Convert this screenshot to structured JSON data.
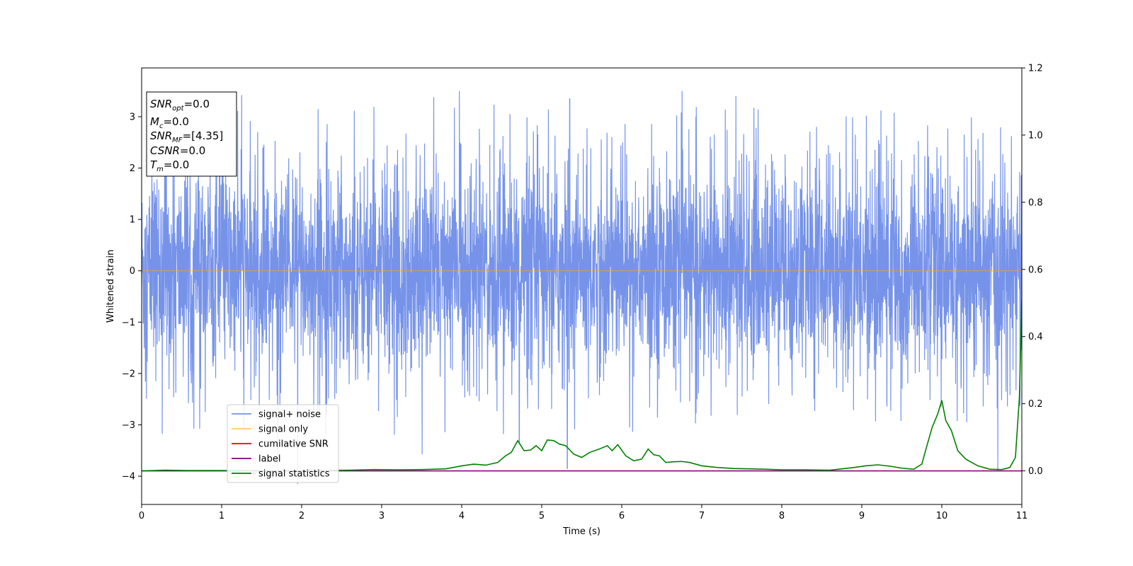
{
  "chart_data": {
    "type": "line",
    "xlabel": "Time (s)",
    "ylabel": "Whitened strain",
    "xlim": [
      0,
      11
    ],
    "ylim_left": [
      -4.55,
      3.95
    ],
    "ylim_right": [
      -0.1,
      1.2
    ],
    "x_ticks": [
      0,
      1,
      2,
      3,
      4,
      5,
      6,
      7,
      8,
      9,
      10,
      11
    ],
    "y_left_ticks": [
      -4,
      -3,
      -2,
      -1,
      0,
      1,
      2,
      3
    ],
    "y_right_ticks": [
      0.0,
      0.2,
      0.4,
      0.6,
      0.8,
      1.0,
      1.2
    ],
    "grid": false,
    "legend_position": "lower-left",
    "info_box": {
      "lines": [
        {
          "main": "SNR",
          "sub": "opt",
          "value": "=0.0"
        },
        {
          "main": "M",
          "sub": "c",
          "value": "=0.0"
        },
        {
          "main": "SNR",
          "sub": "MF",
          "value": "=[4.35]"
        },
        {
          "main": "CSNR",
          "sub": "",
          "value": "=0.0"
        },
        {
          "main": "T",
          "sub": "m",
          "value": "=0.0"
        }
      ]
    },
    "series": [
      {
        "name": "signal+ noise",
        "color": "#4169E1",
        "axis": "left",
        "kind": "noise",
        "x_range": [
          0,
          11
        ],
        "envelope_typical": [
          -2.3,
          2.4
        ],
        "envelope_max": [
          -4.15,
          3.5
        ],
        "peaks": [
          [
            0.3,
            3.25
          ],
          [
            1.25,
            3.42
          ],
          [
            1.95,
            -4.15
          ],
          [
            3.65,
            3.38
          ],
          [
            3.97,
            3.5
          ],
          [
            4.72,
            -3.35
          ],
          [
            5.32,
            -3.85
          ],
          [
            5.35,
            3.35
          ],
          [
            10.7,
            -3.9
          ]
        ]
      },
      {
        "name": "signal only",
        "color": "#FFA500",
        "axis": "left",
        "x": [
          0,
          11
        ],
        "y": [
          0,
          0
        ]
      },
      {
        "name": "cumilative SNR",
        "color": "#FF0000",
        "axis": "right",
        "x": [
          0,
          11
        ],
        "y": [
          0,
          0
        ]
      },
      {
        "name": "label",
        "color": "#800080",
        "axis": "right",
        "x": [
          0,
          11
        ],
        "y": [
          0,
          0
        ]
      },
      {
        "name": "signal statistics",
        "color": "#008000",
        "axis": "right",
        "x": [
          0,
          0.3,
          0.6,
          1.0,
          1.4,
          1.8,
          2.2,
          2.6,
          2.9,
          3.2,
          3.5,
          3.8,
          4.0,
          4.15,
          4.3,
          4.45,
          4.55,
          4.62,
          4.7,
          4.78,
          4.86,
          4.93,
          5.0,
          5.07,
          5.15,
          5.22,
          5.3,
          5.4,
          5.5,
          5.6,
          5.72,
          5.82,
          5.88,
          5.95,
          6.05,
          6.15,
          6.25,
          6.33,
          6.4,
          6.47,
          6.55,
          6.65,
          6.75,
          6.85,
          7.0,
          7.2,
          7.4,
          7.6,
          7.8,
          8.0,
          8.3,
          8.6,
          8.9,
          9.05,
          9.2,
          9.35,
          9.5,
          9.65,
          9.75,
          9.82,
          9.88,
          9.95,
          10.0,
          10.05,
          10.12,
          10.2,
          10.3,
          10.45,
          10.6,
          10.75,
          10.85,
          10.92,
          10.97,
          11.0
        ],
        "y": [
          0.0,
          0.002,
          0.001,
          0.001,
          0.0,
          0.0,
          0.001,
          0.002,
          0.004,
          0.003,
          0.004,
          0.006,
          0.015,
          0.02,
          0.017,
          0.025,
          0.045,
          0.055,
          0.09,
          0.06,
          0.062,
          0.075,
          0.06,
          0.092,
          0.09,
          0.08,
          0.075,
          0.05,
          0.04,
          0.055,
          0.065,
          0.075,
          0.06,
          0.078,
          0.045,
          0.03,
          0.035,
          0.065,
          0.048,
          0.045,
          0.025,
          0.027,
          0.028,
          0.025,
          0.015,
          0.01,
          0.007,
          0.006,
          0.005,
          0.003,
          0.003,
          0.002,
          0.01,
          0.015,
          0.018,
          0.014,
          0.008,
          0.005,
          0.02,
          0.08,
          0.13,
          0.17,
          0.21,
          0.15,
          0.12,
          0.06,
          0.035,
          0.015,
          0.005,
          0.004,
          0.01,
          0.04,
          0.22,
          0.51
        ]
      }
    ]
  }
}
